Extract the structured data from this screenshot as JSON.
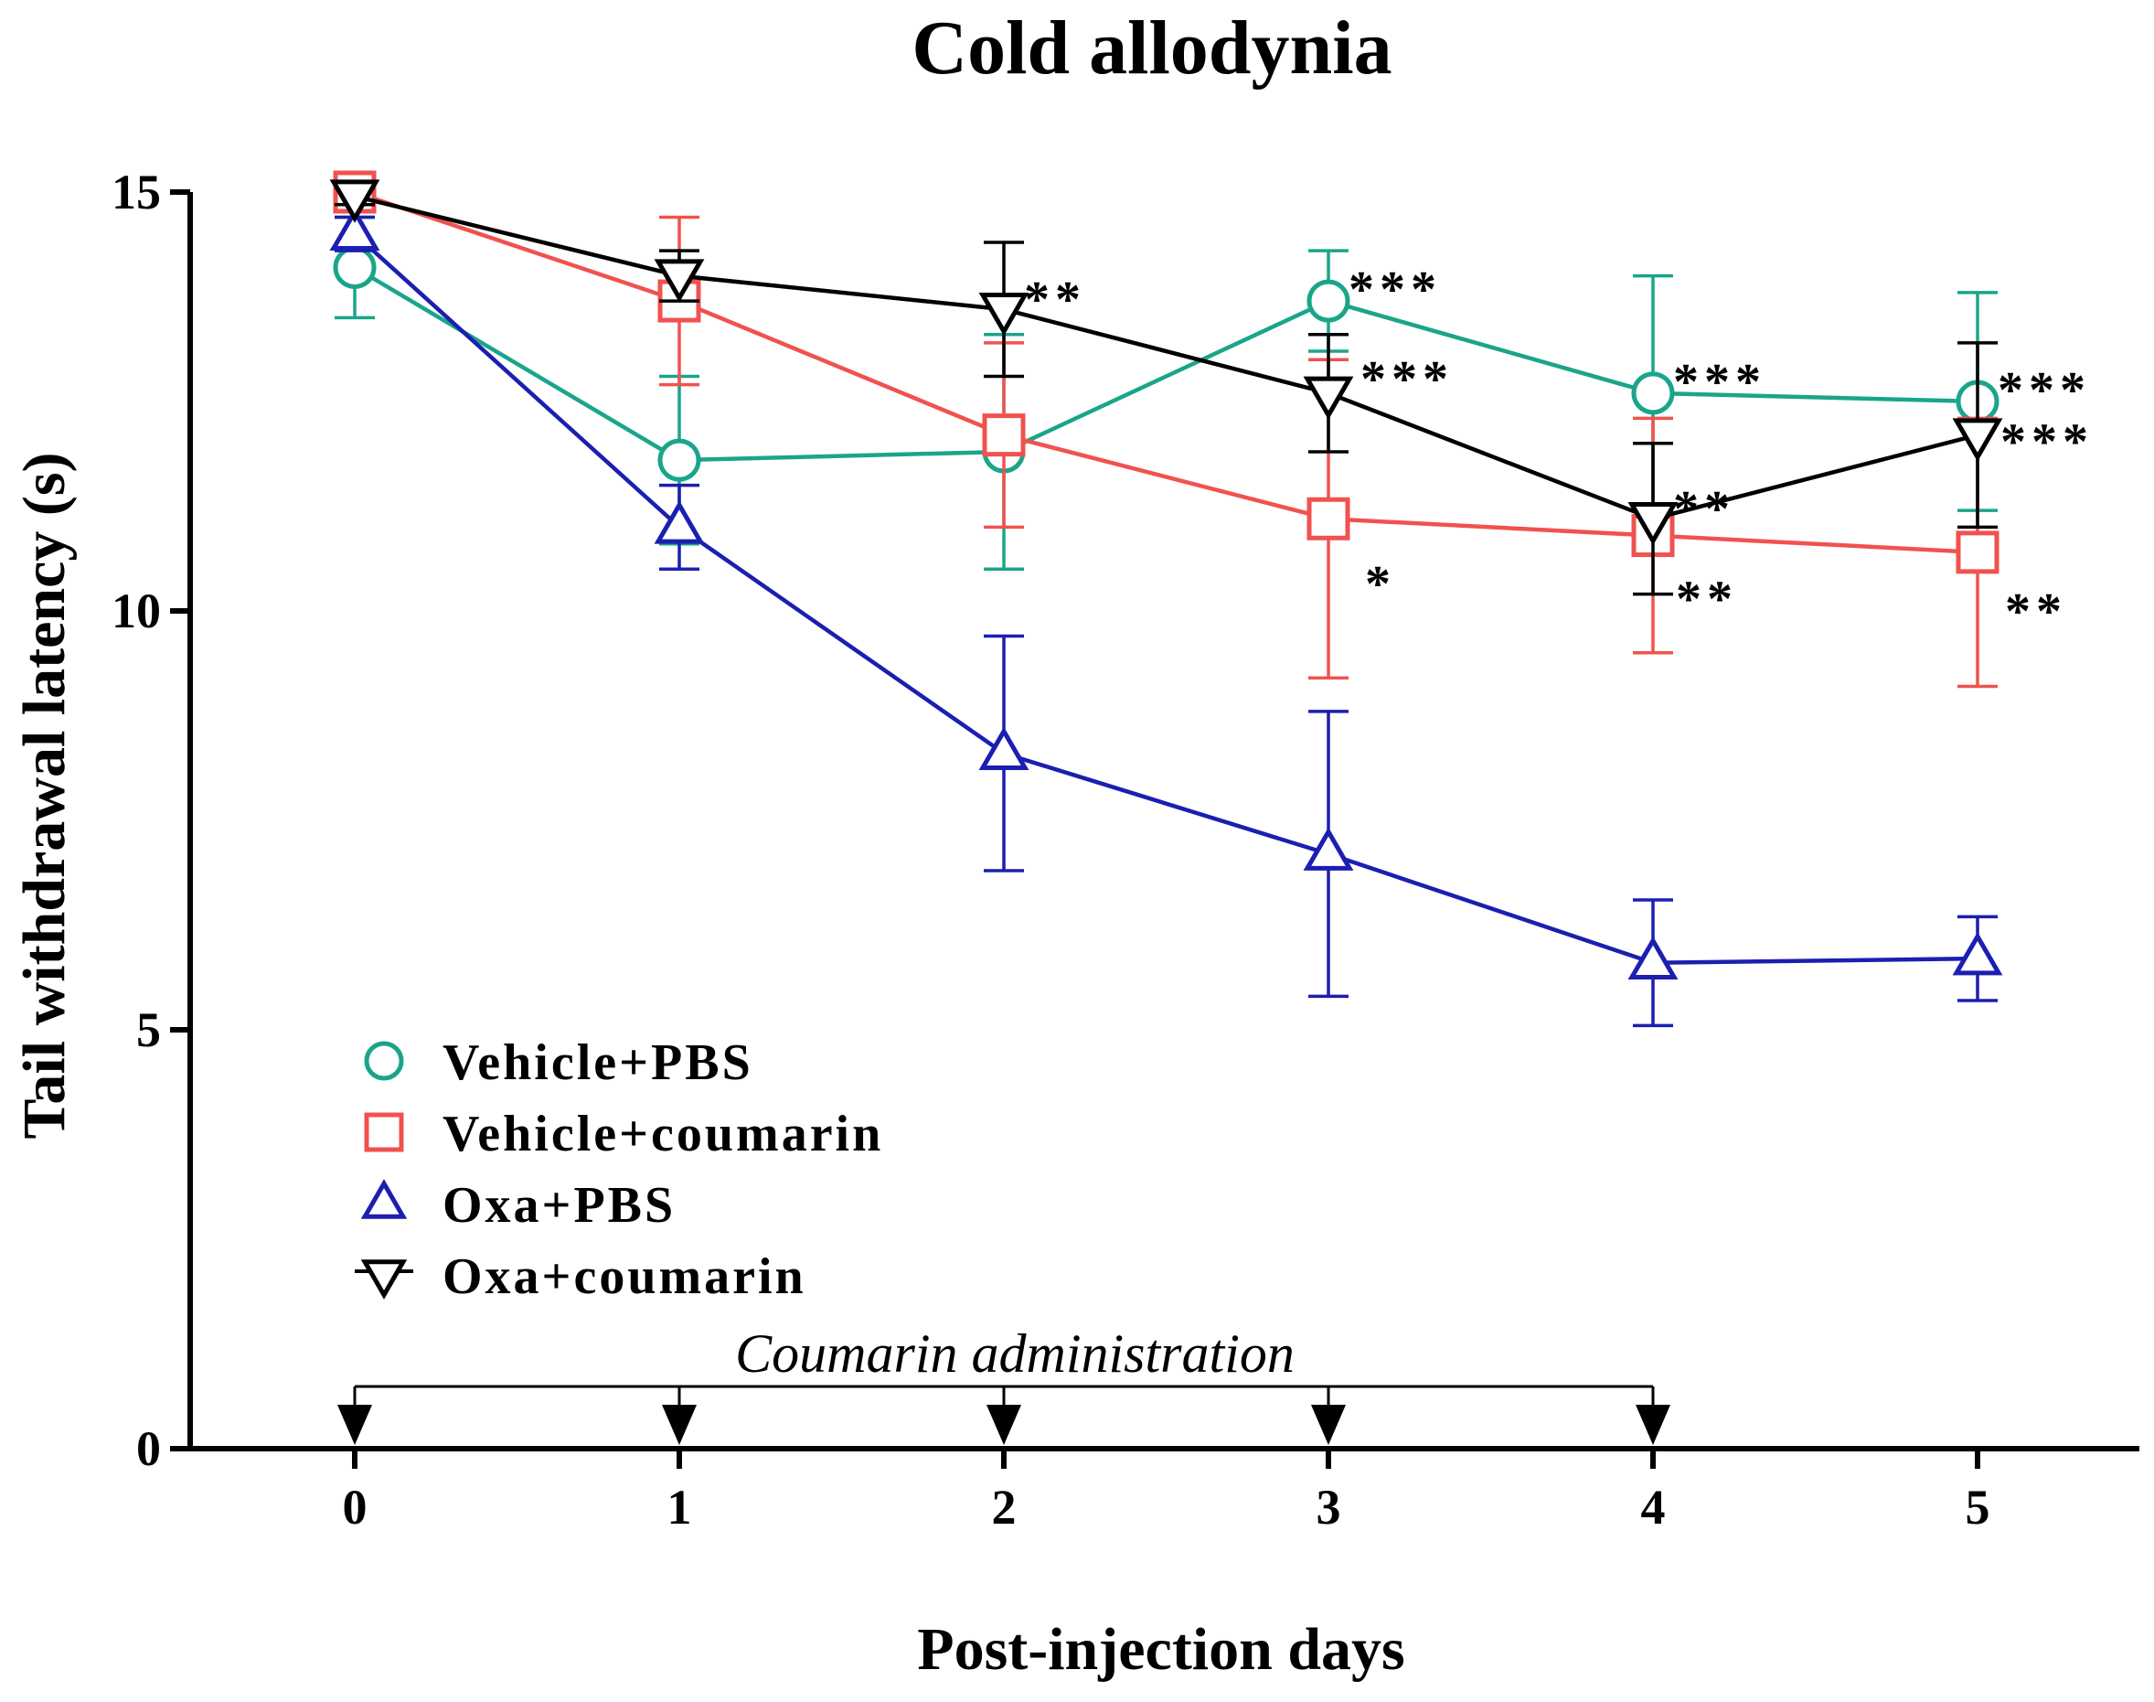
{
  "chart_data": {
    "type": "line",
    "title": "Cold allodynia",
    "xlabel": "Post-injection days",
    "ylabel": "Tail withdrawal latency (s)",
    "x": [
      0,
      1,
      2,
      3,
      4,
      5
    ],
    "xlim": [
      0,
      5
    ],
    "ylim": [
      0,
      15
    ],
    "x_ticks": [
      0,
      1,
      2,
      3,
      4,
      5
    ],
    "y_ticks": [
      0,
      5,
      10,
      15
    ],
    "legend_position": "bottom-left",
    "grid": false,
    "series": [
      {
        "name": "Vehicle+PBS",
        "color": "#1aa58a",
        "marker": "circle",
        "values": [
          14.1,
          11.8,
          11.9,
          13.7,
          12.6,
          12.5
        ],
        "error": [
          0.6,
          1.0,
          1.4,
          0.6,
          1.4,
          1.3
        ],
        "significance": [
          "",
          "",
          "",
          "***",
          "***",
          "***"
        ]
      },
      {
        "name": "Vehicle+coumarin",
        "color": "#f0524f",
        "marker": "square",
        "values": [
          15.0,
          13.7,
          12.1,
          11.1,
          10.9,
          10.7
        ],
        "error": [
          0.1,
          1.0,
          1.1,
          1.9,
          1.4,
          1.6
        ],
        "significance": [
          "",
          "",
          "",
          "*",
          "**",
          "**"
        ]
      },
      {
        "name": "Oxa+PBS",
        "color": "#1b1fb0",
        "marker": "triangle-up",
        "values": [
          14.5,
          11.0,
          8.3,
          7.1,
          5.8,
          5.85
        ],
        "error": [
          0.2,
          0.5,
          1.4,
          1.7,
          0.75,
          0.5
        ],
        "significance": [
          "",
          "",
          "",
          "",
          "",
          ""
        ]
      },
      {
        "name": "Oxa+coumarin",
        "color": "#000000",
        "marker": "triangle-down",
        "values": [
          14.95,
          14.0,
          13.6,
          12.6,
          11.1,
          12.1
        ],
        "error": [
          0.1,
          0.3,
          0.8,
          0.7,
          0.9,
          1.1
        ],
        "significance": [
          "",
          "",
          "**",
          "***",
          "**",
          "***"
        ]
      }
    ],
    "annotation": {
      "text": "Coumarin administration",
      "arrow_days": [
        0,
        1,
        2,
        3,
        4
      ]
    }
  }
}
